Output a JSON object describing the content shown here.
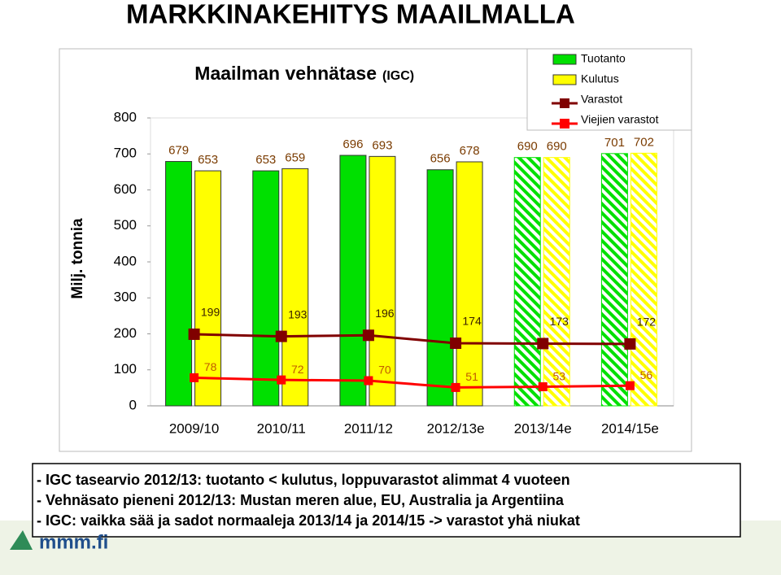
{
  "title": "MARKKINAKEHITYS MAAILMALLA",
  "chart_data": {
    "type": "bar",
    "title": "Maailman vehnätase",
    "title_note": "(IGC)",
    "y_label": "Milj. tonnia",
    "categories": [
      "2009/10",
      "2010/11",
      "2011/12",
      "2012/13e",
      "2013/14e",
      "2014/15e"
    ],
    "hatched": [
      false,
      false,
      false,
      false,
      true,
      true
    ],
    "series": [
      {
        "name": "Tuotanto",
        "type": "bar",
        "color": "#00e000",
        "values": [
          679,
          653,
          696,
          656,
          690,
          701
        ]
      },
      {
        "name": "Kulutus",
        "type": "bar",
        "color": "#ffff00",
        "values": [
          653,
          659,
          693,
          678,
          690,
          702
        ]
      },
      {
        "name": "Varastot",
        "type": "line",
        "color": "#800000",
        "values": [
          199,
          193,
          196,
          174,
          173,
          172
        ]
      },
      {
        "name": "Viejien varastot",
        "type": "line",
        "color": "#ff0000",
        "values": [
          78,
          72,
          70,
          51,
          53,
          56
        ]
      }
    ],
    "ylim": [
      0,
      800
    ],
    "yticks": [
      0,
      100,
      200,
      300,
      400,
      500,
      600,
      700,
      800
    ],
    "grid": false,
    "legend": "upper right"
  },
  "notes": [
    "- IGC tasearvio 2012/13: tuotanto < kulutus, loppuvarastot alimmat 4 vuoteen",
    "- Vehnäsato pieneni 2012/13: Mustan meren alue, EU, Australia ja Argentiina",
    "- IGC: vaikka sää ja sadot normaaleja 2013/14 ja 2014/15 -> varastot yhä niukat"
  ],
  "logo": "mmm.fi"
}
